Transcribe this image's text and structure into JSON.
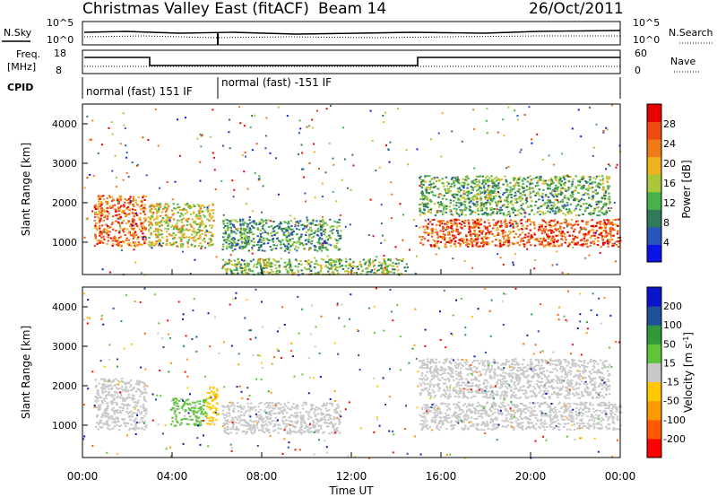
{
  "header": {
    "title": "Christmas Valley East (fitACF)",
    "beam": "Beam 14",
    "date": "26/Oct/2011"
  },
  "labels": {
    "nsky": "N.Sky",
    "nsky_ticks": [
      "10^5",
      "10^0"
    ],
    "nsearch": "N.Search",
    "nsearch_ticks": [
      "10^5",
      "10^0"
    ],
    "freq": "Freq.",
    "freq_unit": "[MHz]",
    "freq_ticks": [
      "18",
      "8"
    ],
    "nave": "Nave",
    "nave_ticks": [
      "60",
      "0"
    ],
    "cpid": "CPID",
    "cpid_modes": [
      "normal (fast) 151 IF",
      "normal (fast) -151 IF"
    ],
    "time_axis": "Time UT"
  },
  "colors": {
    "power_scale": [
      "#0a14e6",
      "#2a55bb",
      "#2e7a5a",
      "#48b24a",
      "#a8c83a",
      "#f0b21e",
      "#f07a18",
      "#ef4a10",
      "#e60000"
    ],
    "velocity_scale": [
      "#ff0000",
      "#ff5a00",
      "#ff9a00",
      "#ffc800",
      "#c8c8c8",
      "#60c43a",
      "#2e9a3a",
      "#1f4e9a",
      "#0a14c8"
    ]
  },
  "chart_data": [
    {
      "type": "heatmap",
      "panel": "power",
      "ylabel": "Slant Range [km]",
      "xlabel": "Time UT",
      "colorbar_label": "Power [dB]",
      "colorbar_ticks": [
        "28",
        "24",
        "20",
        "16",
        "12",
        "8",
        "4"
      ],
      "xlim_hours": [
        0,
        24
      ],
      "ylim_km": [
        180,
        4500
      ],
      "xticks": [
        "00:00",
        "04:00",
        "08:00",
        "12:00",
        "16:00",
        "20:00",
        "00:00"
      ],
      "yticks": [
        1000,
        2000,
        3000,
        4000
      ],
      "regions": [
        {
          "t0": 0.5,
          "t1": 2.8,
          "r0": 900,
          "r1": 2200,
          "value": 26
        },
        {
          "t0": 2.9,
          "t1": 5.8,
          "r0": 900,
          "r1": 2000,
          "value": 18
        },
        {
          "t0": 6.2,
          "t1": 11.5,
          "r0": 800,
          "r1": 1600,
          "value": 10
        },
        {
          "t0": 6.2,
          "t1": 14.5,
          "r0": 200,
          "r1": 600,
          "value": 14
        },
        {
          "t0": 15.0,
          "t1": 24.0,
          "r0": 900,
          "r1": 1600,
          "value": 27
        },
        {
          "t0": 15.0,
          "t1": 23.5,
          "r0": 1700,
          "r1": 2700,
          "value": 12
        }
      ]
    },
    {
      "type": "heatmap",
      "panel": "velocity",
      "ylabel": "Slant Range [km]",
      "xlabel": "Time UT",
      "colorbar_label": "Velocity [m s^-1]",
      "colorbar_ticks": [
        "200",
        "100",
        "50",
        "15",
        "-15",
        "-50",
        "-100",
        "-200"
      ],
      "xlim_hours": [
        0,
        24
      ],
      "ylim_km": [
        180,
        4500
      ],
      "xticks": [
        "00:00",
        "04:00",
        "08:00",
        "12:00",
        "16:00",
        "20:00",
        "00:00"
      ],
      "yticks": [
        1000,
        2000,
        3000,
        4000
      ],
      "regions": [
        {
          "t0": 0.5,
          "t1": 2.8,
          "r0": 900,
          "r1": 2200,
          "value": 0
        },
        {
          "t0": 3.9,
          "t1": 5.5,
          "r0": 1000,
          "r1": 1700,
          "value": 40
        },
        {
          "t0": 5.5,
          "t1": 6.0,
          "r0": 1000,
          "r1": 2000,
          "value": -40
        },
        {
          "t0": 6.2,
          "t1": 11.5,
          "r0": 800,
          "r1": 1600,
          "value": 0
        },
        {
          "t0": 15.0,
          "t1": 24.0,
          "r0": 900,
          "r1": 1600,
          "value": 0
        },
        {
          "t0": 15.0,
          "t1": 23.5,
          "r0": 1700,
          "r1": 2700,
          "value": 5
        }
      ]
    }
  ]
}
